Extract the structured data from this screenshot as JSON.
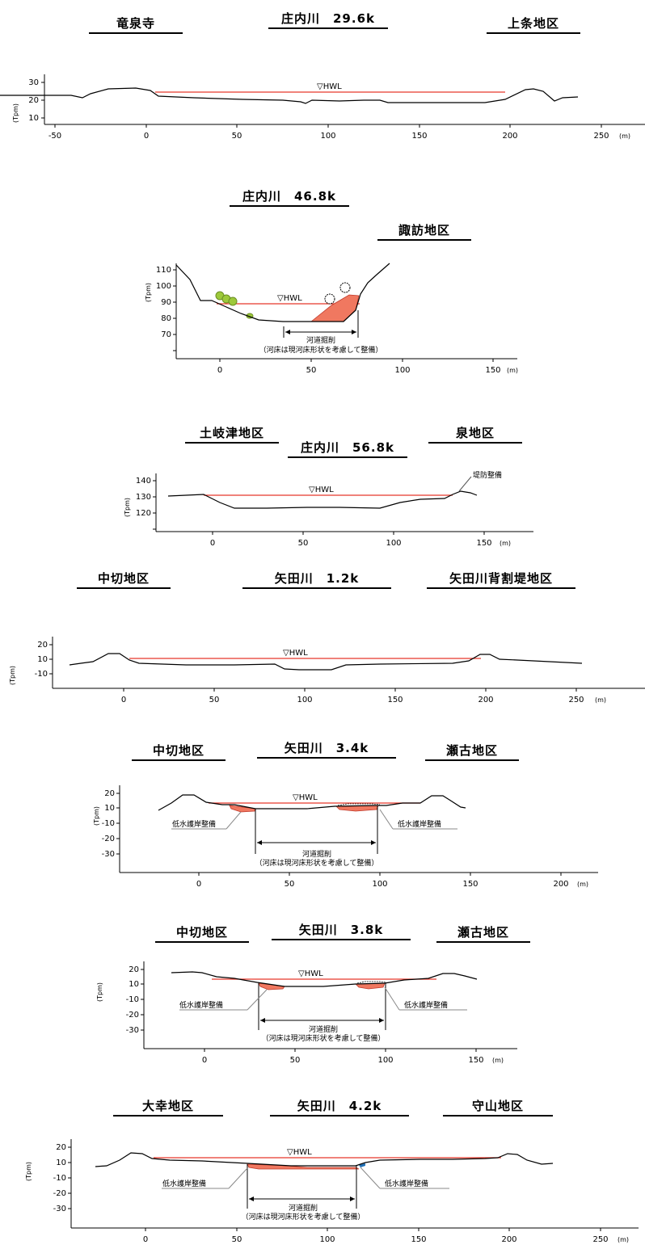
{
  "labels": {
    "hwl": "▽HWL",
    "ylabel": "(Tpm)",
    "xunit": "(m)"
  },
  "sections": [
    {
      "title": "庄内川　29.6k",
      "left_area": "竜泉寺",
      "right_area": "上条地区",
      "yticks": [
        "30",
        "20",
        "10"
      ],
      "xticks": [
        "-50",
        "0",
        "50",
        "100",
        "150",
        "200",
        "250"
      ]
    },
    {
      "title": "庄内川　46.8k",
      "left_area": "",
      "right_area": "諏訪地区",
      "yticks": [
        "110",
        "100",
        "90",
        "80",
        "70"
      ],
      "xticks": [
        "0",
        "50",
        "100",
        "150"
      ],
      "notes": {
        "excavation": "河道掘削",
        "excavation_sub": "（河床は現河床形状を考慮して整備）"
      }
    },
    {
      "title": "庄内川　56.8k",
      "left_area": "土岐津地区",
      "right_area": "泉地区",
      "yticks": [
        "140",
        "130",
        "120"
      ],
      "xticks": [
        "0",
        "50",
        "100",
        "150"
      ],
      "notes": {
        "levee": "堤防整備"
      }
    },
    {
      "title": "矢田川　1.2k",
      "left_area": "中切地区",
      "right_area": "矢田川背割堤地区",
      "yticks": [
        "20",
        "10",
        "-10"
      ],
      "xticks": [
        "0",
        "50",
        "100",
        "150",
        "200",
        "250"
      ]
    },
    {
      "title": "矢田川　3.4k",
      "left_area": "中切地区",
      "right_area": "瀬古地区",
      "yticks": [
        "20",
        "10",
        "-10",
        "-20",
        "-30"
      ],
      "xticks": [
        "0",
        "50",
        "100",
        "150",
        "200"
      ],
      "notes": {
        "revetment_left": "低水護岸整備",
        "revetment_right": "低水護岸整備",
        "excavation": "河道掘削",
        "excavation_sub": "（河床は現河床形状を考慮して整備）"
      }
    },
    {
      "title": "矢田川　3.8k",
      "left_area": "中切地区",
      "right_area": "瀬古地区",
      "yticks": [
        "20",
        "10",
        "-10",
        "-20",
        "-30"
      ],
      "xticks": [
        "0",
        "50",
        "100",
        "150"
      ],
      "notes": {
        "revetment_left": "低水護岸整備",
        "revetment_right": "低水護岸整備",
        "excavation": "河道掘削",
        "excavation_sub": "（河床は現河床形状を考慮して整備）"
      }
    },
    {
      "title": "矢田川　4.2k",
      "left_area": "大幸地区",
      "right_area": "守山地区",
      "yticks": [
        "20",
        "10",
        "-10",
        "-20",
        "-30"
      ],
      "xticks": [
        "0",
        "50",
        "100",
        "150",
        "200",
        "250"
      ],
      "notes": {
        "revetment_left": "低水護岸整備",
        "revetment_right": "低水護岸整備",
        "excavation": "河道掘削",
        "excavation_sub": "（河床は現河床形状を考慮して整備）"
      }
    }
  ],
  "colors": {
    "hwl_line": "#e8382a",
    "excavation_fill": "#f07860",
    "vegetation": "#9dc93b",
    "ground": "#000000"
  }
}
